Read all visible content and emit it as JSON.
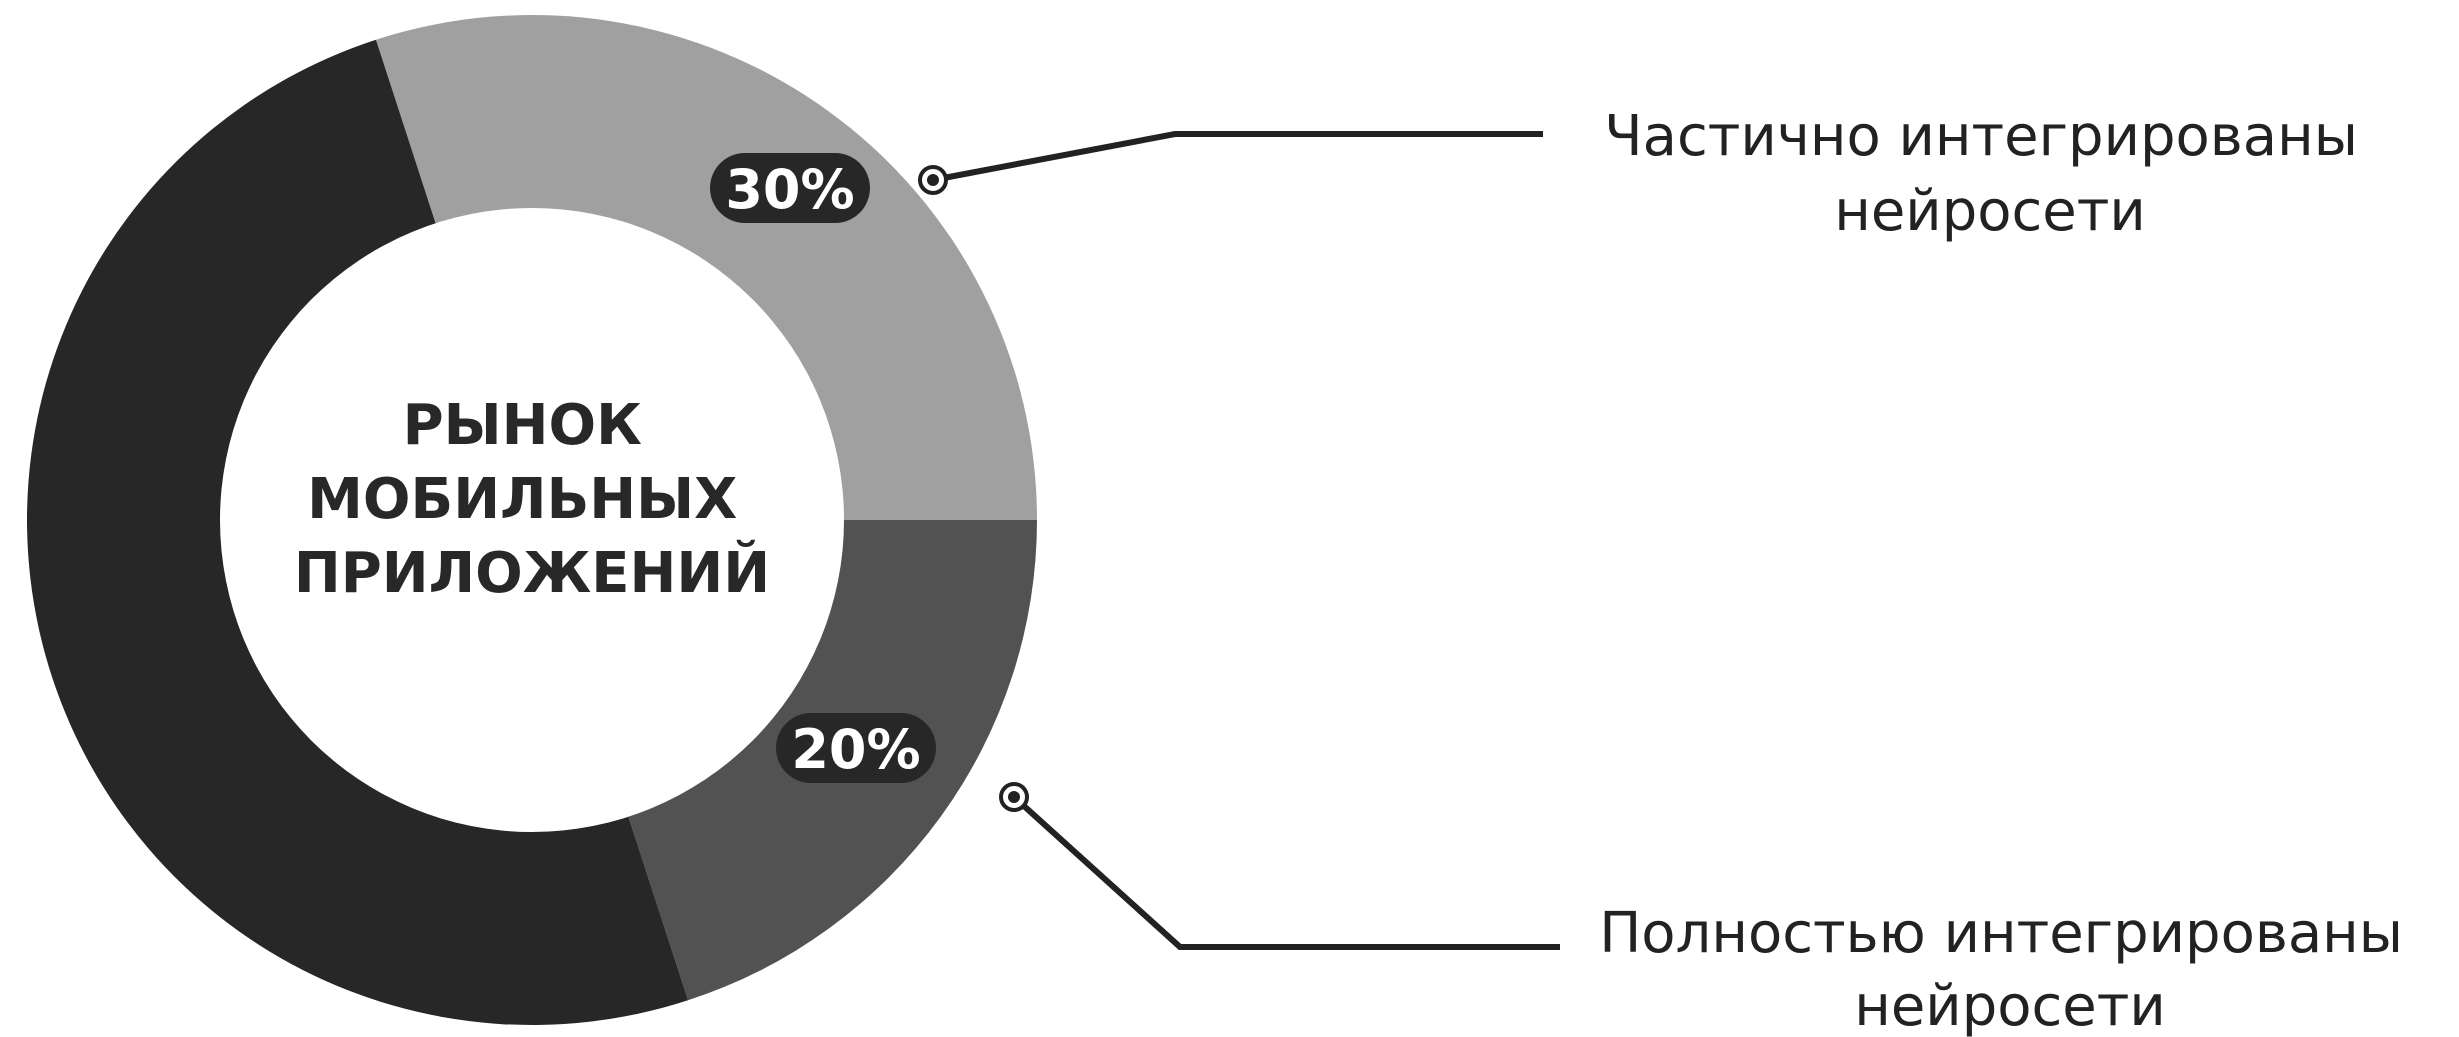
{
  "chart_data": {
    "type": "pie",
    "title": "РЫНОК МОБИЛЬНЫХ ПРИЛОЖЕНИЙ",
    "title_lines": [
      "РЫНОК",
      "МОБИЛЬНЫХ",
      "ПРИЛОЖЕНИЙ"
    ],
    "donut": true,
    "slices": [
      {
        "key": "partial",
        "label": "Частично интегрированы нейросети",
        "label_lines": [
          "Частично интегрированы",
          "нейросети"
        ],
        "value": 30,
        "display": "30%",
        "color": "#a0a0a0"
      },
      {
        "key": "full",
        "label": "Полностью интегрированы нейросети",
        "label_lines": [
          "Полностью интегрированы",
          "нейросети"
        ],
        "value": 20,
        "display": "20%",
        "color": "#525252"
      },
      {
        "key": "rest",
        "value": 50,
        "color": "#272727"
      }
    ],
    "badge_color": "#272727",
    "leader_color": "#222222"
  }
}
